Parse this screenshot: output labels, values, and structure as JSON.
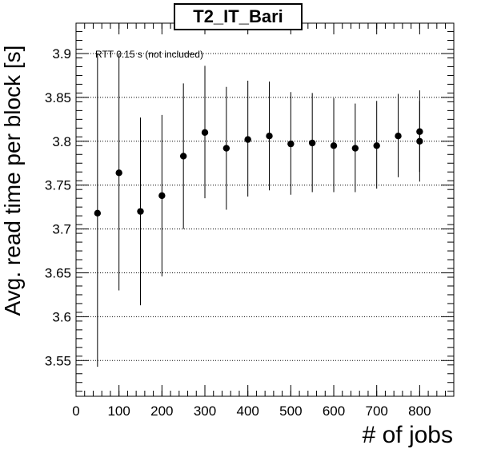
{
  "chart_data": {
    "type": "scatter",
    "title": "T2_IT_Bari",
    "xlabel": "# of jobs",
    "ylabel": "Avg. read time per block [s]",
    "annotation": "RTT 0.15 s (not included)",
    "xlim": [
      0,
      880
    ],
    "ylim": [
      3.505,
      3.935
    ],
    "xticks": [
      0,
      100,
      200,
      300,
      400,
      500,
      600,
      700,
      800
    ],
    "yticks": [
      3.55,
      3.6,
      3.65,
      3.7,
      3.75,
      3.8,
      3.85,
      3.9
    ],
    "x_tick_labels": [
      "0",
      "100",
      "200",
      "300",
      "400",
      "500",
      "600",
      "700",
      "800"
    ],
    "y_tick_labels": [
      "3.55",
      "3.6",
      "3.65",
      "3.7",
      "3.75",
      "3.8",
      "3.85",
      "3.9"
    ],
    "grid": "horizontal dotted",
    "series": [
      {
        "points": [
          {
            "x": 50,
            "y": 3.718,
            "ylo": 3.543,
            "yhi": 3.9
          },
          {
            "x": 100,
            "y": 3.764,
            "ylo": 3.63,
            "yhi": 3.9
          },
          {
            "x": 150,
            "y": 3.72,
            "ylo": 3.613,
            "yhi": 3.827
          },
          {
            "x": 200,
            "y": 3.738,
            "ylo": 3.646,
            "yhi": 3.83
          },
          {
            "x": 250,
            "y": 3.783,
            "ylo": 3.7,
            "yhi": 3.866
          },
          {
            "x": 300,
            "y": 3.81,
            "ylo": 3.735,
            "yhi": 3.886
          },
          {
            "x": 350,
            "y": 3.792,
            "ylo": 3.722,
            "yhi": 3.862
          },
          {
            "x": 400,
            "y": 3.802,
            "ylo": 3.737,
            "yhi": 3.869
          },
          {
            "x": 450,
            "y": 3.806,
            "ylo": 3.744,
            "yhi": 3.868
          },
          {
            "x": 500,
            "y": 3.797,
            "ylo": 3.739,
            "yhi": 3.856
          },
          {
            "x": 550,
            "y": 3.798,
            "ylo": 3.742,
            "yhi": 3.855
          },
          {
            "x": 600,
            "y": 3.795,
            "ylo": 3.742,
            "yhi": 3.849
          },
          {
            "x": 650,
            "y": 3.792,
            "ylo": 3.742,
            "yhi": 3.843
          },
          {
            "x": 700,
            "y": 3.795,
            "ylo": 3.746,
            "yhi": 3.846
          },
          {
            "x": 750,
            "y": 3.806,
            "ylo": 3.759,
            "yhi": 3.854
          },
          {
            "x": 800,
            "y": 3.811,
            "ylo": 3.765,
            "yhi": 3.858
          },
          {
            "x": 800,
            "y": 3.8,
            "ylo": 3.754,
            "yhi": 3.846
          }
        ]
      }
    ]
  }
}
